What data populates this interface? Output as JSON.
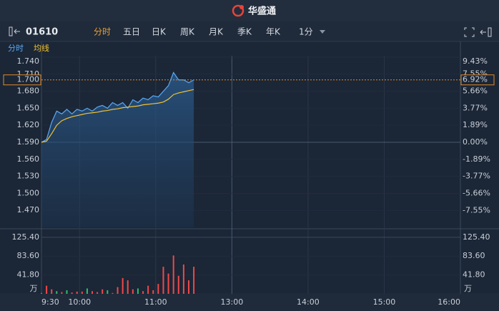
{
  "header": {
    "brand": "华盛通"
  },
  "toolbar": {
    "symbol": "01610",
    "tabs": [
      "分时",
      "五日",
      "日K",
      "周K",
      "月K",
      "季K",
      "年K"
    ],
    "active_tab": 0,
    "interval": "1分"
  },
  "chart_data": {
    "type": "line",
    "x": [
      "9:30",
      "9:34",
      "9:38",
      "9:42",
      "9:46",
      "9:50",
      "9:54",
      "9:58",
      "10:02",
      "10:06",
      "10:10",
      "10:14",
      "10:18",
      "10:22",
      "10:26",
      "10:30",
      "10:34",
      "10:38",
      "10:42",
      "10:46",
      "10:50",
      "10:54",
      "10:58",
      "11:02",
      "11:06",
      "11:10",
      "11:14",
      "11:18",
      "11:22",
      "11:26",
      "11:30"
    ],
    "series": [
      {
        "name": "分时",
        "color": "#5aa9f5",
        "values": [
          1.59,
          1.595,
          1.625,
          1.645,
          1.64,
          1.648,
          1.64,
          1.648,
          1.645,
          1.65,
          1.645,
          1.652,
          1.655,
          1.65,
          1.66,
          1.655,
          1.66,
          1.65,
          1.665,
          1.66,
          1.668,
          1.665,
          1.672,
          1.67,
          1.68,
          1.69,
          1.713,
          1.7,
          1.7,
          1.695,
          1.7
        ]
      },
      {
        "name": "均线",
        "color": "#f2c230",
        "values": [
          1.59,
          1.592,
          1.605,
          1.62,
          1.628,
          1.632,
          1.635,
          1.637,
          1.639,
          1.641,
          1.642,
          1.643,
          1.645,
          1.646,
          1.648,
          1.649,
          1.651,
          1.652,
          1.653,
          1.654,
          1.656,
          1.657,
          1.658,
          1.659,
          1.661,
          1.666,
          1.674,
          1.677,
          1.679,
          1.681,
          1.683
        ]
      }
    ],
    "xticks": [
      "9:30",
      "10:00",
      "11:00",
      "13:00",
      "14:00",
      "15:00",
      "16:00"
    ],
    "ylim": [
      1.44,
      1.74
    ],
    "yticks": [
      {
        "value": 1.74,
        "label": "1.740"
      },
      {
        "value": 1.71,
        "label": "1.710"
      },
      {
        "value": 1.68,
        "label": "1.680"
      },
      {
        "value": 1.65,
        "label": "1.650"
      },
      {
        "value": 1.62,
        "label": "1.620"
      },
      {
        "value": 1.59,
        "label": "1.590"
      },
      {
        "value": 1.56,
        "label": "1.560"
      },
      {
        "value": 1.53,
        "label": "1.530"
      },
      {
        "value": 1.5,
        "label": "1.500"
      },
      {
        "value": 1.47,
        "label": "1.470"
      }
    ],
    "y2lim": [
      -9.43,
      9.43
    ],
    "y2ticks": [
      {
        "value": 9.43,
        "label": "9.43%"
      },
      {
        "value": 7.55,
        "label": "7.55%"
      },
      {
        "value": 5.66,
        "label": "5.66%"
      },
      {
        "value": 3.77,
        "label": "3.77%"
      },
      {
        "value": 1.89,
        "label": "1.89%"
      },
      {
        "value": 0,
        "label": "0.00%"
      },
      {
        "value": -1.89,
        "label": "-1.89%"
      },
      {
        "value": -3.77,
        "label": "-3.77%"
      },
      {
        "value": -5.66,
        "label": "-5.66%"
      },
      {
        "value": -7.55,
        "label": "-7.55%"
      }
    ],
    "last_price": {
      "value": 1.7,
      "label": "1.700"
    },
    "last_change": {
      "value": 6.92,
      "label": "6.92%"
    },
    "up_color": "#f04848",
    "down_color": "#2bbf6e",
    "flat_color": "#e6e9ee",
    "volume": {
      "type": "bar",
      "unit": "万",
      "values": [
        2,
        18,
        10,
        6,
        4,
        8,
        3,
        5,
        5,
        12,
        6,
        4,
        10,
        8,
        2,
        15,
        35,
        30,
        10,
        12,
        6,
        18,
        8,
        22,
        60,
        45,
        85,
        40,
        65,
        30,
        60
      ],
      "colors": [
        "#f04848",
        "#f04848",
        "#f04848",
        "#2bbf6e",
        "#f04848",
        "#2bbf6e",
        "#f04848",
        "#f04848",
        "#f04848",
        "#2bbf6e",
        "#f04848",
        "#f04848",
        "#f04848",
        "#2bbf6e",
        "#f04848",
        "#f04848",
        "#f04848",
        "#f04848",
        "#f04848",
        "#2bbf6e",
        "#f04848",
        "#f04848",
        "#f04848",
        "#f04848",
        "#f04848",
        "#f04848",
        "#f04848",
        "#f04848",
        "#f04848",
        "#f04848",
        "#f04848"
      ],
      "ylim": [
        0,
        141
      ],
      "yticks": [
        {
          "value": 125.4,
          "label": "125.40"
        },
        {
          "value": 83.6,
          "label": "83.60"
        },
        {
          "value": 41.8,
          "label": "41.80"
        }
      ]
    }
  }
}
